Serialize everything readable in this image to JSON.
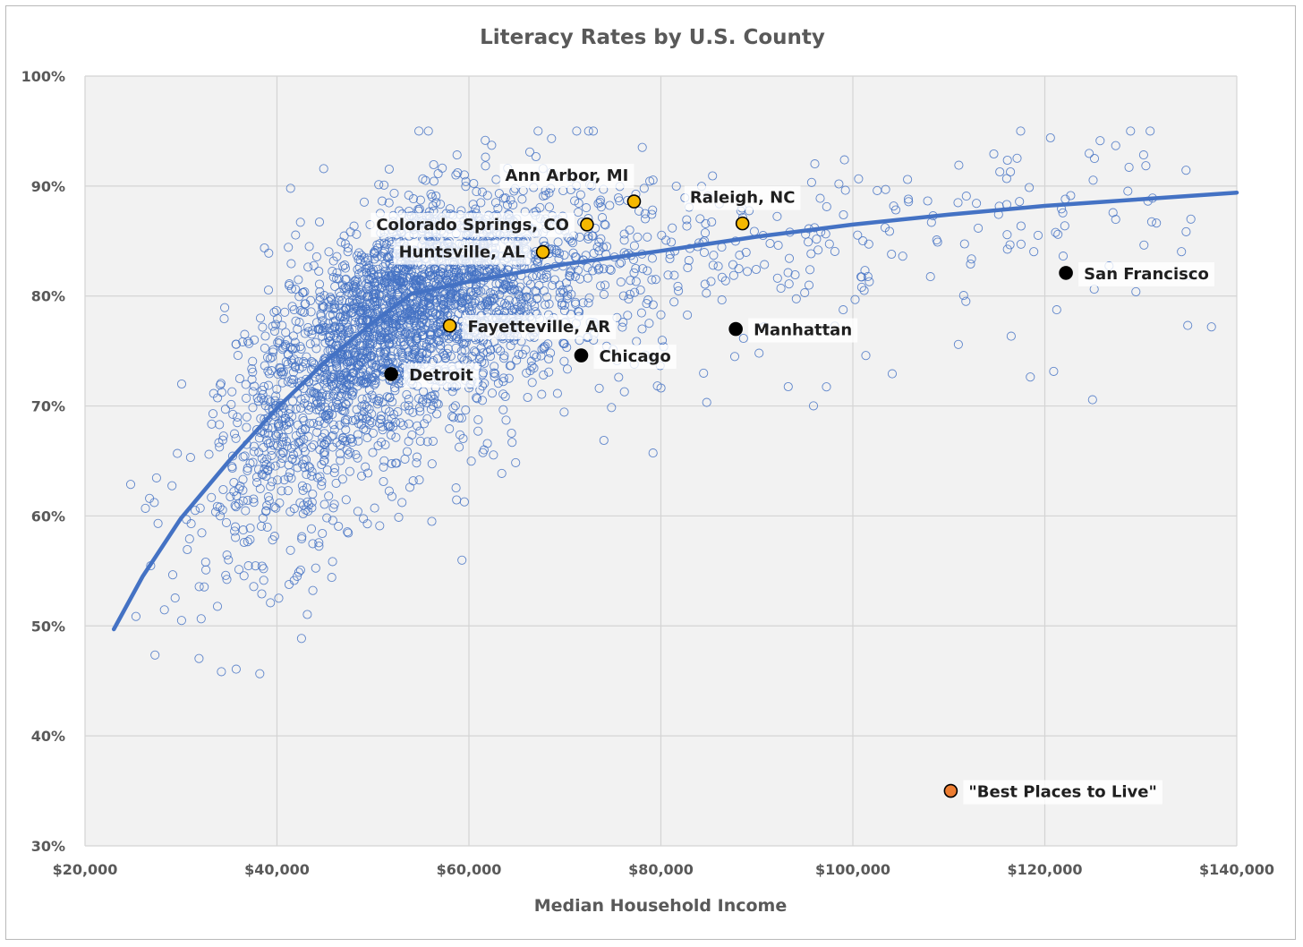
{
  "chart_data": {
    "type": "scatter",
    "title": "Literacy Rates by U.S. County",
    "xlabel": "Median Household Income",
    "ylabel": "",
    "xlim": [
      20000,
      140000
    ],
    "ylim": [
      30,
      100
    ],
    "x_ticks": [
      20000,
      40000,
      60000,
      80000,
      100000,
      120000,
      140000
    ],
    "x_tick_labels": [
      "$20,000",
      "$40,000",
      "$60,000",
      "$80,000",
      "$100,000",
      "$120,000",
      "$140,000"
    ],
    "y_ticks": [
      30,
      40,
      50,
      60,
      70,
      80,
      90,
      100
    ],
    "y_tick_labels": [
      "30%",
      "40%",
      "50%",
      "60%",
      "70%",
      "80%",
      "90%",
      "100%"
    ],
    "grid": true,
    "colors": {
      "scatter": "#4472c4",
      "trend": "#4472c4",
      "highlight": "#f5b800",
      "special": "#ed7d31",
      "black": "#000000",
      "plot_bg": "#f2f2f2",
      "grid": "#d4d4d4"
    },
    "counties_scatter": {
      "n": 3000,
      "description_x_range": [
        23000,
        140000
      ],
      "description_y_range": [
        31,
        95
      ]
    },
    "trendline": [
      {
        "x": 23000,
        "y": 49.7
      },
      {
        "x": 26000,
        "y": 54.5
      },
      {
        "x": 30000,
        "y": 59.8
      },
      {
        "x": 35000,
        "y": 65.0
      },
      {
        "x": 40000,
        "y": 69.8
      },
      {
        "x": 45000,
        "y": 74.0
      },
      {
        "x": 50000,
        "y": 77.6
      },
      {
        "x": 54000,
        "y": 80.2
      },
      {
        "x": 60000,
        "y": 81.3
      },
      {
        "x": 70000,
        "y": 82.9
      },
      {
        "x": 80000,
        "y": 84.1
      },
      {
        "x": 90000,
        "y": 85.4
      },
      {
        "x": 100000,
        "y": 86.5
      },
      {
        "x": 110000,
        "y": 87.4
      },
      {
        "x": 120000,
        "y": 88.2
      },
      {
        "x": 130000,
        "y": 88.8
      },
      {
        "x": 140000,
        "y": 89.4
      }
    ],
    "labeled_points": [
      {
        "label": "Ann Arbor, MI",
        "x": 77200,
        "y": 88.6,
        "color": "#f5b800",
        "label_pos": "above-left"
      },
      {
        "label": "Raleigh, NC",
        "x": 88500,
        "y": 86.6,
        "color": "#f5b800",
        "label_pos": "above"
      },
      {
        "label": "Colorado Springs, CO",
        "x": 72300,
        "y": 86.5,
        "color": "#f5b800",
        "label_pos": "left"
      },
      {
        "label": "Huntsville, AL",
        "x": 67700,
        "y": 84.0,
        "color": "#f5b800",
        "label_pos": "left"
      },
      {
        "label": "Fayetteville, AR",
        "x": 58000,
        "y": 77.3,
        "color": "#f5b800",
        "label_pos": "right"
      },
      {
        "label": "Chicago",
        "x": 71700,
        "y": 74.6,
        "color": "#000000",
        "label_pos": "right"
      },
      {
        "label": "Detroit",
        "x": 51900,
        "y": 72.9,
        "color": "#000000",
        "label_pos": "right"
      },
      {
        "label": "Manhattan",
        "x": 87800,
        "y": 77.0,
        "color": "#000000",
        "label_pos": "right"
      },
      {
        "label": "San Francisco",
        "x": 122200,
        "y": 82.1,
        "color": "#000000",
        "label_pos": "right"
      },
      {
        "label": "\"Best Places to Live\"",
        "x": 110200,
        "y": 35.0,
        "color": "#ed7d31",
        "label_pos": "right"
      }
    ]
  }
}
